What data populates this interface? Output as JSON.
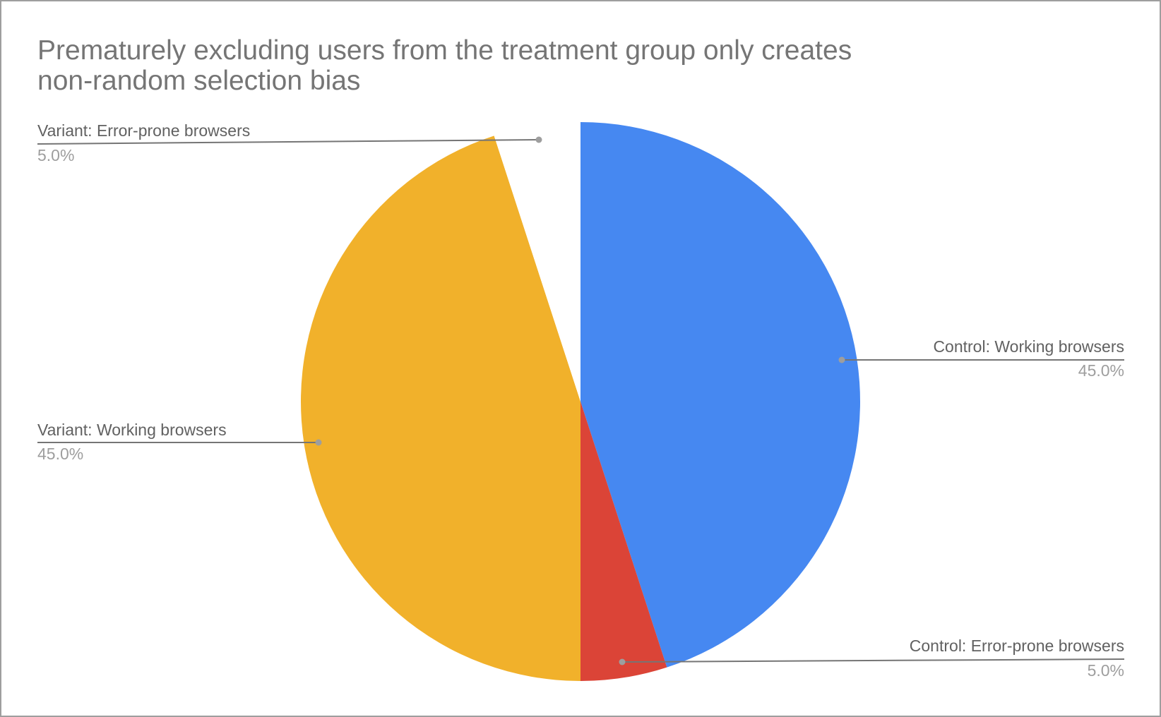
{
  "chart_data": {
    "type": "pie",
    "title": "Prematurely excluding users from the treatment group only creates non-random selection bias",
    "slices": [
      {
        "label": "Control: Working browsers",
        "value": 45.0,
        "display": "45.0%",
        "color": "#4688f1"
      },
      {
        "label": "Control: Error-prone browsers",
        "value": 5.0,
        "display": "5.0%",
        "color": "#db4437"
      },
      {
        "label": "Variant: Working browsers",
        "value": 45.0,
        "display": "45.0%",
        "color": "#f1b12b"
      },
      {
        "label": "Variant: Error-prone browsers",
        "value": 5.0,
        "display": "5.0%",
        "color": "#ffffff"
      }
    ],
    "legend_position": "labeled"
  },
  "title_line1": "Prematurely excluding users from the treatment group only creates",
  "title_line2": "non-random selection bias"
}
